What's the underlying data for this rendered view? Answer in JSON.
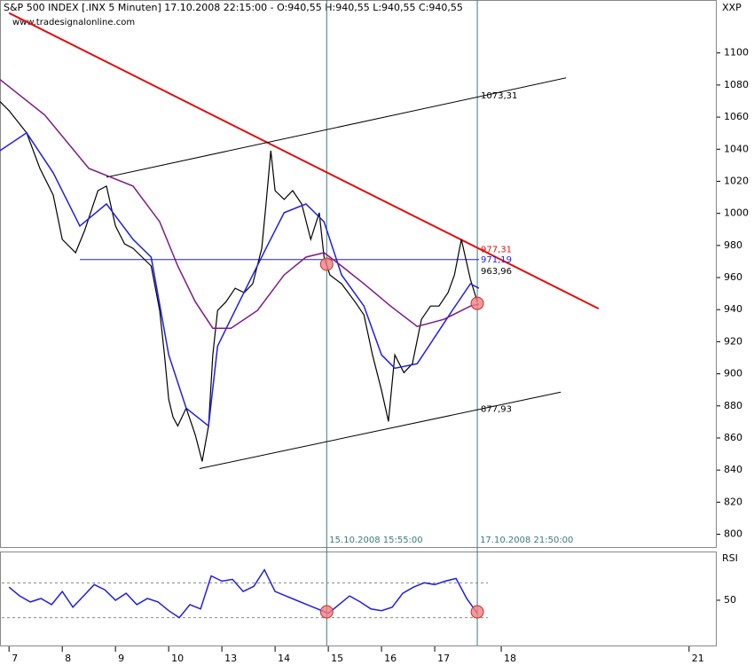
{
  "header": {
    "title": "S&P 500 INDEX [.INX  5 Minuten] 17.10.2008 22:15:00 - O:940,55 H:940,55 L:940,55 C:940,55",
    "source": "www.tradesignalonline.com",
    "symbol": "XXP"
  },
  "chart_data": [
    {
      "type": "line",
      "xlim": [
        -0.17,
        13.3
      ],
      "ylim": [
        792,
        1133
      ],
      "yticks": [
        800,
        820,
        840,
        860,
        880,
        900,
        920,
        940,
        960,
        980,
        1000,
        1020,
        1040,
        1060,
        1080,
        1100
      ],
      "xticks": [
        {
          "value": 0,
          "label": "7"
        },
        {
          "value": 1,
          "label": "8"
        },
        {
          "value": 2,
          "label": "9"
        },
        {
          "value": 3,
          "label": "10"
        },
        {
          "value": 4,
          "label": "13"
        },
        {
          "value": 5,
          "label": "14"
        },
        {
          "value": 6,
          "label": "15"
        },
        {
          "value": 7,
          "label": "16"
        },
        {
          "value": 8,
          "label": "17"
        },
        {
          "value": 9.25,
          "label": "18"
        },
        {
          "value": 12.78,
          "label": "21"
        }
      ],
      "series": [
        {
          "color": "#000000",
          "x": [
            -0.17,
            0,
            0.33,
            0.58,
            0.83,
            1,
            1.25,
            1.42,
            1.67,
            1.83,
            2,
            2.17,
            2.33,
            2.5,
            2.67,
            2.83,
            2.92,
            3,
            3.08,
            3.17,
            3.33,
            3.5,
            3.63,
            3.75,
            3.83,
            3.92,
            4.08,
            4.25,
            4.42,
            4.58,
            4.75,
            4.83,
            4.92,
            5,
            5.17,
            5.33,
            5.5,
            5.67,
            5.83,
            5.92,
            6.03,
            6.25,
            6.5,
            6.67,
            6.83,
            7,
            7.13,
            7.25,
            7.42,
            7.58,
            7.75,
            7.92,
            8.08,
            8.25,
            8.37,
            8.5,
            8.67,
            8.8
          ],
          "values": [
            1069.6,
            1064,
            1050.2,
            1028,
            1011.4,
            983.8,
            975.5,
            989.3,
            1014.2,
            1017,
            992.1,
            981,
            978.2,
            972.7,
            967.2,
            939.5,
            911.8,
            884.1,
            873.1,
            867.5,
            878.6,
            862,
            845.4,
            867.5,
            911.8,
            939.5,
            945,
            953.3,
            950.6,
            956.1,
            978.2,
            1005.9,
            1039.1,
            1014.2,
            1008.7,
            1014.2,
            1005.9,
            983.8,
            1000.4,
            972.7,
            961.6,
            956.1,
            945,
            936.7,
            911.8,
            889.7,
            870.3,
            911.8,
            900.7,
            906.3,
            933.9,
            942.2,
            942.2,
            950.6,
            961.6,
            983.8,
            958.9,
            945
          ]
        },
        {
          "color": "#1f1fe0",
          "x": [
            -0.17,
            0.33,
            0.83,
            1.33,
            1.83,
            2.33,
            2.67,
            3,
            3.33,
            3.75,
            3.92,
            4.33,
            4.83,
            5.17,
            5.58,
            5.92,
            6.25,
            6.67,
            7,
            7.25,
            7.67,
            8,
            8.33,
            8.67,
            8.83
          ],
          "values": [
            1039.1,
            1050.2,
            1025.3,
            992.1,
            1005.9,
            983.8,
            972.7,
            911.8,
            878.6,
            867.5,
            917.3,
            945,
            978.2,
            1000.4,
            1005.9,
            994.8,
            961.6,
            942.2,
            911.8,
            903.5,
            906.3,
            922.9,
            939.5,
            956.1,
            953.3
          ]
        },
        {
          "color": "#7b1a86",
          "x": [
            -0.17,
            0.67,
            1.5,
            2.33,
            2.83,
            3.17,
            3.5,
            3.83,
            4.17,
            4.67,
            5.17,
            5.58,
            5.92,
            6.25,
            6.67,
            7.17,
            7.67,
            8.17,
            8.67,
            8.83
          ],
          "values": [
            1083.4,
            1061.3,
            1028,
            1017,
            994.8,
            967.2,
            945,
            928.4,
            928.4,
            939.5,
            961.6,
            972.7,
            975.5,
            967.2,
            956.1,
            942.2,
            929.5,
            933.9,
            942.2,
            943.4
          ]
        }
      ],
      "trendlines": [
        {
          "color": "#e01010",
          "x": [
            0,
            11.08
          ],
          "values": [
            1124.9,
            940.6
          ]
        },
        {
          "color": "#000000",
          "x": [
            1.83,
            10.47
          ],
          "values": [
            1022.5,
            1084.5
          ]
        },
        {
          "color": "#000000",
          "x": [
            3.58,
            10.37
          ],
          "values": [
            840.9,
            888.6
          ]
        },
        {
          "color": "#1f1fe0",
          "x": [
            1.33,
            8.83
          ],
          "values": [
            971.19,
            971.19
          ]
        }
      ],
      "vlines": [
        {
          "x": 5.97,
          "label": "15.10.2008 15:55:00"
        },
        {
          "x": 8.8,
          "label": "17.10.2008 21:50:00"
        }
      ],
      "markers": [
        {
          "x": 5.97,
          "value": 968.3
        },
        {
          "x": 8.8,
          "value": 943.9
        }
      ],
      "price_labels": [
        {
          "value": 1073.31,
          "label": "1073,31",
          "color": "#000000"
        },
        {
          "value": 977.31,
          "label": "977,31",
          "color": "#e01010"
        },
        {
          "value": 971.19,
          "label": "971,19",
          "color": "#1f1fe0"
        },
        {
          "value": 963.96,
          "label": "963,96",
          "color": "#000000"
        },
        {
          "value": 877.93,
          "label": "877,93",
          "color": "#000000"
        }
      ]
    },
    {
      "type": "line",
      "title": "RSI",
      "xlim": [
        -0.17,
        13.3
      ],
      "ylim": [
        -2,
        106
      ],
      "yticks": [
        50
      ],
      "levels": [
        30,
        70
      ],
      "series": [
        {
          "color": "#1f1fe0",
          "x": [
            0,
            0.2,
            0.4,
            0.6,
            0.8,
            1,
            1.2,
            1.4,
            1.6,
            1.8,
            2,
            2.2,
            2.4,
            2.6,
            2.8,
            3,
            3.2,
            3.4,
            3.6,
            3.8,
            4,
            4.2,
            4.4,
            4.6,
            4.8,
            5,
            5.2,
            5.4,
            5.6,
            5.8,
            6,
            6.2,
            6.4,
            6.6,
            6.8,
            7,
            7.2,
            7.4,
            7.6,
            7.8,
            8,
            8.2,
            8.4,
            8.6,
            8.8
          ],
          "values": [
            65,
            55,
            48,
            52,
            45,
            60,
            42,
            55,
            68,
            62,
            50,
            58,
            45,
            52,
            48,
            38,
            30,
            45,
            40,
            78,
            72,
            74,
            60,
            66,
            85,
            60,
            55,
            50,
            45,
            40,
            35,
            45,
            55,
            48,
            40,
            38,
            42,
            58,
            65,
            70,
            68,
            72,
            75,
            52,
            35
          ]
        }
      ],
      "markers": [
        {
          "x": 5.97,
          "value": 36.7
        },
        {
          "x": 8.8,
          "value": 36.7
        }
      ]
    }
  ]
}
